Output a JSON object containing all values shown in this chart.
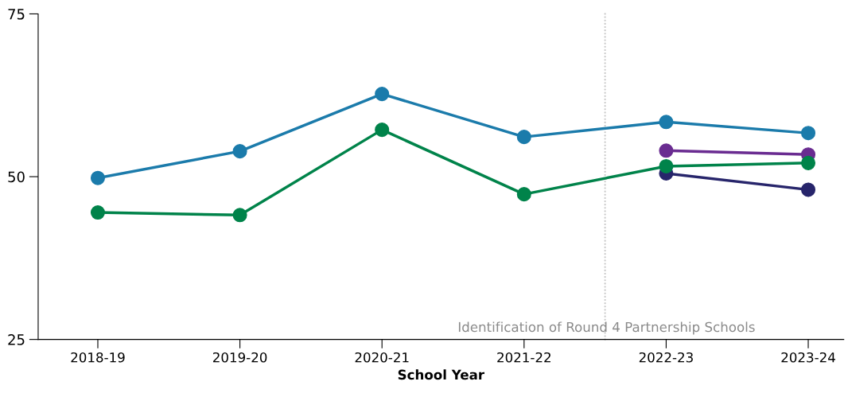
{
  "chart_data": {
    "type": "line",
    "xlabel": "School Year",
    "categories": [
      "2018-19",
      "2019-20",
      "2020-21",
      "2021-22",
      "2022-23",
      "2023-24"
    ],
    "series": [
      {
        "color": "#1b7bab",
        "values": [
          49.8,
          53.9,
          62.7,
          56.1,
          58.4,
          56.7
        ]
      },
      {
        "color": "#6a2c91",
        "values": [
          null,
          null,
          null,
          null,
          54.0,
          53.4
        ]
      },
      {
        "color": "#27256b",
        "values": [
          null,
          null,
          null,
          null,
          50.5,
          48.0
        ]
      },
      {
        "color": "#00834a",
        "values": [
          44.5,
          44.1,
          57.2,
          47.3,
          51.6,
          52.1
        ]
      }
    ],
    "ylim": [
      25,
      75
    ],
    "yticks": [
      25,
      50,
      75
    ],
    "grid": false,
    "marker": "circle",
    "line_style": "solid",
    "annotations": [
      "Identification of Round 4 Partnership Schools"
    ]
  }
}
